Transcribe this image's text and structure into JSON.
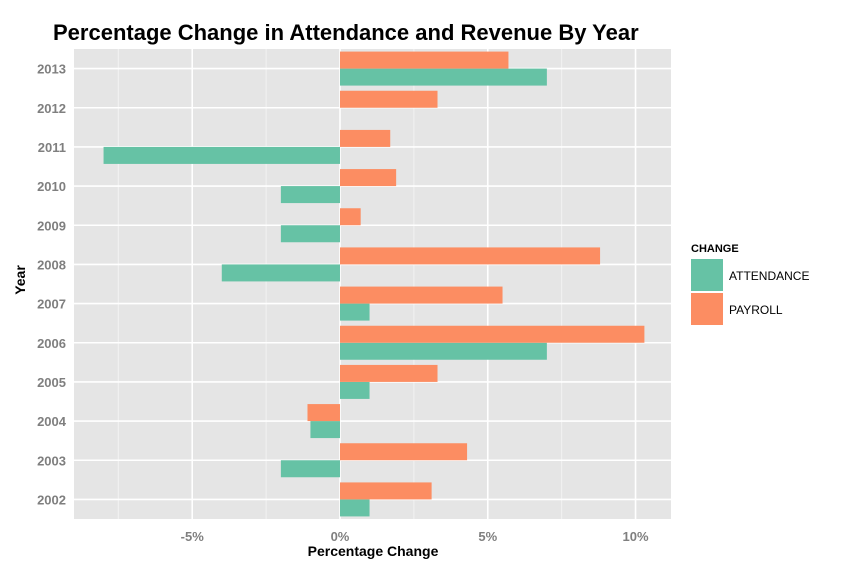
{
  "chart_data": {
    "type": "bar",
    "orientation": "horizontal",
    "title": "Percentage Change in Attendance and Revenue By Year",
    "xlabel": "Percentage Change",
    "ylabel": "Year",
    "xlim": [
      -9,
      11.2
    ],
    "x_ticks": [
      -5,
      0,
      5,
      10
    ],
    "x_tick_labels": [
      "-5%",
      "0%",
      "5%",
      "10%"
    ],
    "categories": [
      "2002",
      "2003",
      "2004",
      "2005",
      "2006",
      "2007",
      "2008",
      "2009",
      "2010",
      "2011",
      "2012",
      "2013"
    ],
    "series": [
      {
        "name": "ATTENDANCE",
        "color": "#66c2a5",
        "values": [
          1,
          -2,
          -1,
          1,
          7,
          1,
          -4,
          -2,
          -2,
          -8,
          0,
          7
        ]
      },
      {
        "name": "PAYROLL",
        "color": "#fc8d62",
        "values": [
          3.1,
          4.3,
          -1.1,
          3.3,
          10.3,
          5.5,
          8.8,
          0.7,
          1.9,
          1.7,
          3.3,
          5.7
        ]
      }
    ],
    "legend": {
      "title": "CHANGE",
      "position": "right"
    },
    "grid": true,
    "background": "#e5e5e5"
  }
}
